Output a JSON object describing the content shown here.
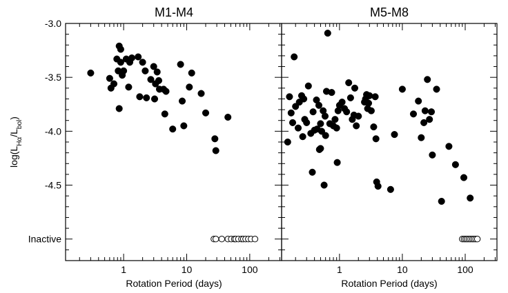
{
  "chart_data": [
    {
      "type": "scatter",
      "title": "M1-M4",
      "xlabel": "Rotation Period (days)",
      "ylabel": "log(L_Hα/L_bol)",
      "xscale": "log",
      "xlim": [
        0.12,
        320
      ],
      "ylim": [
        -5.2,
        -3.0
      ],
      "xticks": [
        1,
        10,
        100
      ],
      "xtick_labels": [
        "1",
        "10",
        "100"
      ],
      "yticks": [
        -3.0,
        -3.5,
        -4.0,
        -4.5,
        -5.0
      ],
      "ytick_labels": [
        "-3.0",
        "-3.5",
        "-4.0",
        "-4.5",
        "Inactive"
      ],
      "inactive_y": -5.0,
      "series": [
        {
          "marker": "filled-circle",
          "color": "#000000",
          "points": [
            [
              0.3,
              -3.46
            ],
            [
              0.6,
              -3.51
            ],
            [
              0.63,
              -3.6
            ],
            [
              0.7,
              -3.56
            ],
            [
              0.78,
              -3.33
            ],
            [
              0.82,
              -3.44
            ],
            [
              0.85,
              -3.21
            ],
            [
              0.85,
              -3.79
            ],
            [
              0.9,
              -3.24
            ],
            [
              0.9,
              -3.36
            ],
            [
              0.95,
              -3.48
            ],
            [
              1.0,
              -3.44
            ],
            [
              1.1,
              -3.33
            ],
            [
              1.2,
              -3.59
            ],
            [
              1.25,
              -3.36
            ],
            [
              1.35,
              -3.32
            ],
            [
              1.7,
              -3.31
            ],
            [
              1.8,
              -3.68
            ],
            [
              2.0,
              -3.36
            ],
            [
              2.2,
              -3.44
            ],
            [
              2.3,
              -3.69
            ],
            [
              2.7,
              -3.52
            ],
            [
              3.0,
              -3.4
            ],
            [
              3.1,
              -3.7
            ],
            [
              3.2,
              -3.56
            ],
            [
              3.4,
              -3.45
            ],
            [
              3.6,
              -3.53
            ],
            [
              3.7,
              -3.61
            ],
            [
              4.3,
              -3.61
            ],
            [
              4.5,
              -3.84
            ],
            [
              4.7,
              -3.63
            ],
            [
              6.0,
              -3.98
            ],
            [
              8.0,
              -3.38
            ],
            [
              8.5,
              -3.72
            ],
            [
              9.0,
              -3.95
            ],
            [
              11.0,
              -3.59
            ],
            [
              12.0,
              -3.46
            ],
            [
              17.0,
              -3.65
            ],
            [
              20.0,
              -3.83
            ],
            [
              28.0,
              -4.07
            ],
            [
              29.0,
              -4.18
            ],
            [
              45.0,
              -3.87
            ]
          ]
        },
        {
          "marker": "open-circle",
          "color": "#000000",
          "points": [
            [
              27,
              -5.0
            ],
            [
              29,
              -5.0
            ],
            [
              36,
              -5.0
            ],
            [
              45,
              -5.0
            ],
            [
              51,
              -5.0
            ],
            [
              57,
              -5.0
            ],
            [
              60,
              -5.0
            ],
            [
              66,
              -5.0
            ],
            [
              74,
              -5.0
            ],
            [
              79,
              -5.0
            ],
            [
              86,
              -5.0
            ],
            [
              95,
              -5.0
            ],
            [
              105,
              -5.0
            ],
            [
              121,
              -5.0
            ]
          ]
        }
      ]
    },
    {
      "type": "scatter",
      "title": "M5-M8",
      "xlabel": "Rotation Period (days)",
      "ylabel": "",
      "xscale": "log",
      "xlim": [
        0.12,
        320
      ],
      "ylim": [
        -5.2,
        -3.0
      ],
      "xticks": [
        1,
        10,
        100
      ],
      "xtick_labels": [
        "1",
        "10",
        "100"
      ],
      "yticks": [
        -3.0,
        -3.5,
        -4.0,
        -4.5,
        -5.0
      ],
      "ytick_labels": [],
      "inactive_y": -5.0,
      "series": [
        {
          "marker": "filled-circle",
          "color": "#000000",
          "points": [
            [
              0.15,
              -4.1
            ],
            [
              0.16,
              -3.68
            ],
            [
              0.17,
              -3.83
            ],
            [
              0.18,
              -3.92
            ],
            [
              0.19,
              -3.31
            ],
            [
              0.2,
              -3.77
            ],
            [
              0.22,
              -3.97
            ],
            [
              0.23,
              -3.73
            ],
            [
              0.25,
              -3.67
            ],
            [
              0.26,
              -4.05
            ],
            [
              0.27,
              -3.7
            ],
            [
              0.28,
              -3.89
            ],
            [
              0.3,
              -3.92
            ],
            [
              0.32,
              -3.58
            ],
            [
              0.35,
              -4.02
            ],
            [
              0.37,
              -4.38
            ],
            [
              0.38,
              -3.82
            ],
            [
              0.4,
              -3.99
            ],
            [
              0.43,
              -3.71
            ],
            [
              0.44,
              -3.98
            ],
            [
              0.47,
              -3.76
            ],
            [
              0.48,
              -4.17
            ],
            [
              0.5,
              -3.93
            ],
            [
              0.5,
              -4.16
            ],
            [
              0.52,
              -4.0
            ],
            [
              0.55,
              -3.81
            ],
            [
              0.57,
              -4.5
            ],
            [
              0.59,
              -3.86
            ],
            [
              0.6,
              -4.04
            ],
            [
              0.62,
              -3.63
            ],
            [
              0.65,
              -3.09
            ],
            [
              0.7,
              -3.93
            ],
            [
              0.75,
              -3.64
            ],
            [
              0.8,
              -3.95
            ],
            [
              0.85,
              -3.89
            ],
            [
              0.9,
              -3.97
            ],
            [
              0.92,
              -4.29
            ],
            [
              0.95,
              -3.81
            ],
            [
              1.0,
              -3.76
            ],
            [
              1.1,
              -3.73
            ],
            [
              1.2,
              -3.79
            ],
            [
              1.3,
              -3.82
            ],
            [
              1.4,
              -3.55
            ],
            [
              1.5,
              -3.69
            ],
            [
              1.6,
              -3.89
            ],
            [
              1.7,
              -3.85
            ],
            [
              1.75,
              -3.6
            ],
            [
              1.85,
              -3.95
            ],
            [
              2.0,
              -3.86
            ],
            [
              2.5,
              -3.73
            ],
            [
              2.6,
              -3.7
            ],
            [
              2.7,
              -3.66
            ],
            [
              2.8,
              -3.79
            ],
            [
              2.9,
              -3.74
            ],
            [
              3.0,
              -3.67
            ],
            [
              3.2,
              -3.81
            ],
            [
              3.5,
              -3.96
            ],
            [
              3.7,
              -3.68
            ],
            [
              3.8,
              -4.07
            ],
            [
              3.9,
              -4.47
            ],
            [
              4.1,
              -4.51
            ],
            [
              6.5,
              -4.54
            ],
            [
              7.5,
              -4.03
            ],
            [
              10.0,
              -3.61
            ],
            [
              15.0,
              -3.84
            ],
            [
              18.0,
              -3.72
            ],
            [
              20.0,
              -4.06
            ],
            [
              22.0,
              -3.92
            ],
            [
              23.0,
              -3.81
            ],
            [
              25.0,
              -3.52
            ],
            [
              27.0,
              -3.89
            ],
            [
              29.0,
              -3.82
            ],
            [
              30.0,
              -4.22
            ],
            [
              35.0,
              -3.61
            ],
            [
              42.0,
              -4.65
            ],
            [
              55.0,
              -4.14
            ],
            [
              70.0,
              -4.31
            ],
            [
              95.0,
              -4.43
            ],
            [
              120.0,
              -4.62
            ]
          ]
        },
        {
          "marker": "open-circle",
          "color": "#000000",
          "points": [
            [
              90,
              -5.0
            ],
            [
              96,
              -5.0
            ],
            [
              102,
              -5.0
            ],
            [
              108,
              -5.0
            ],
            [
              115,
              -5.0
            ],
            [
              122,
              -5.0
            ],
            [
              130,
              -5.0
            ],
            [
              138,
              -5.0
            ],
            [
              147,
              -5.0
            ],
            [
              156,
              -5.0
            ]
          ]
        }
      ]
    }
  ]
}
